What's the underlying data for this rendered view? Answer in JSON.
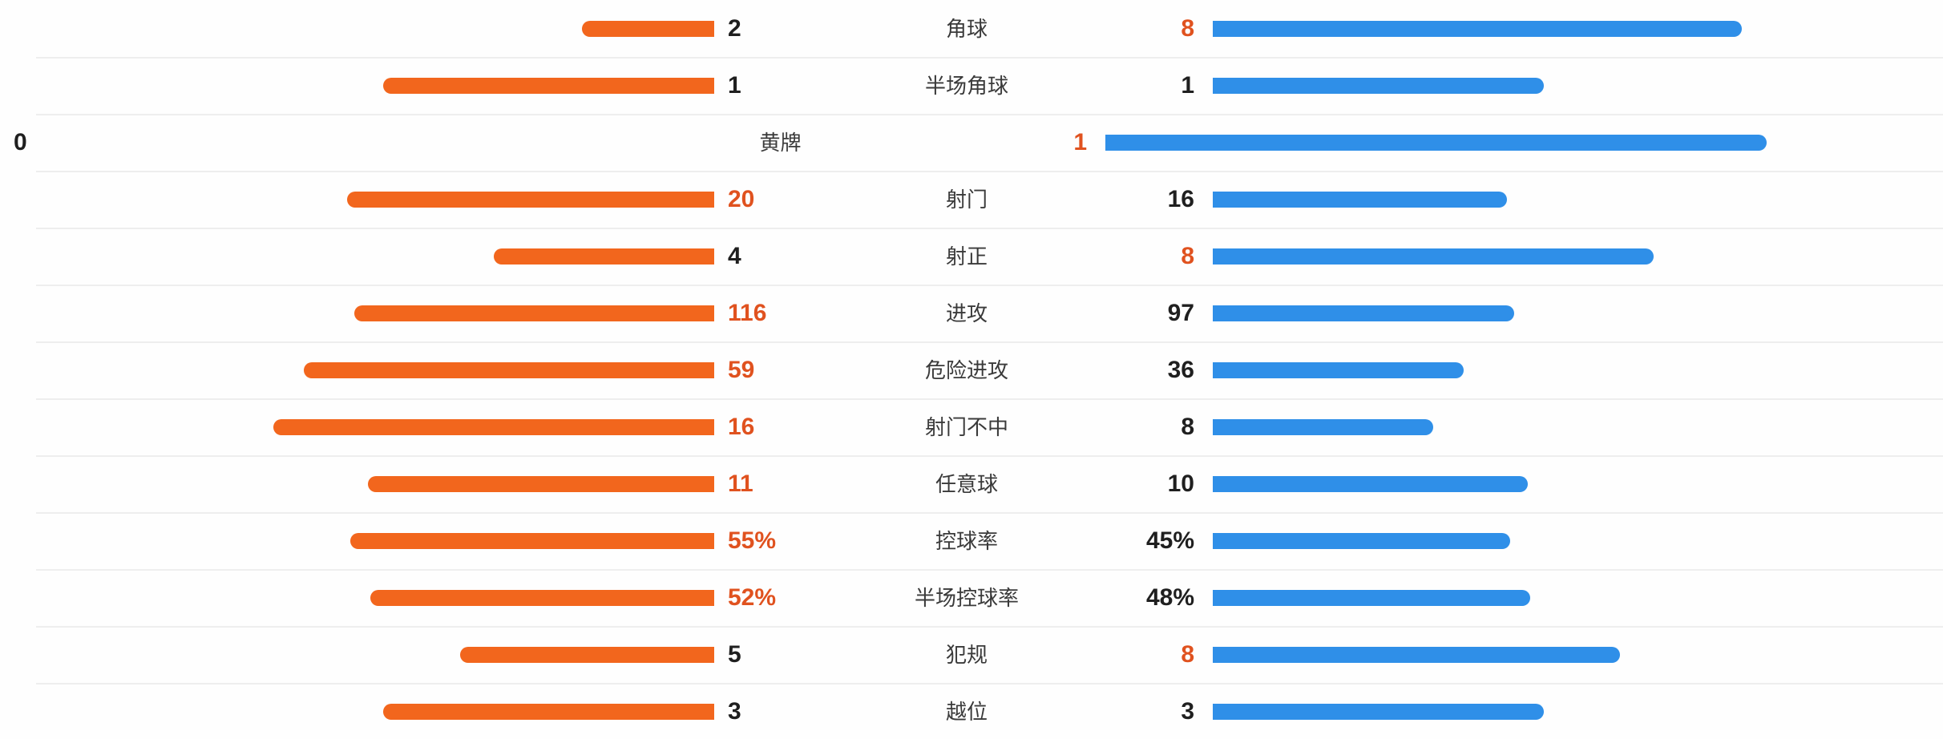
{
  "chart_data": {
    "type": "bar",
    "subtype": "head-to-head-duel-bars",
    "title": "",
    "legend_position": "none",
    "grid": false,
    "layout_hint": "per-row horizontal duel bars; each row's two bar lengths are proportional to value/(home+away); home bars grow leftward from a center-left anchor, away bars grow rightward",
    "categories": [
      "角球",
      "半场角球",
      "黄牌",
      "射门",
      "射正",
      "进攻",
      "危险进攻",
      "射门不中",
      "任意球",
      "控球率",
      "半场控球率",
      "犯规",
      "越位"
    ],
    "series": [
      {
        "name": "home-orange",
        "values": [
          2,
          1,
          0,
          20,
          4,
          116,
          59,
          16,
          11,
          55,
          52,
          5,
          3
        ]
      },
      {
        "name": "away-blue",
        "values": [
          8,
          1,
          1,
          16,
          8,
          97,
          36,
          8,
          10,
          45,
          48,
          8,
          3
        ]
      }
    ],
    "rows": [
      {
        "label": "角球",
        "left": {
          "display": "2",
          "value": 2,
          "highlight": false
        },
        "right": {
          "display": "8",
          "value": 8,
          "highlight": true
        }
      },
      {
        "label": "半场角球",
        "left": {
          "display": "1",
          "value": 1,
          "highlight": false
        },
        "right": {
          "display": "1",
          "value": 1,
          "highlight": false
        }
      },
      {
        "label": "黄牌",
        "left": {
          "display": "0",
          "value": 0,
          "highlight": false
        },
        "right": {
          "display": "1",
          "value": 1,
          "highlight": true
        }
      },
      {
        "label": "射门",
        "left": {
          "display": "20",
          "value": 20,
          "highlight": true
        },
        "right": {
          "display": "16",
          "value": 16,
          "highlight": false
        }
      },
      {
        "label": "射正",
        "left": {
          "display": "4",
          "value": 4,
          "highlight": false
        },
        "right": {
          "display": "8",
          "value": 8,
          "highlight": true
        }
      },
      {
        "label": "进攻",
        "left": {
          "display": "116",
          "value": 116,
          "highlight": true
        },
        "right": {
          "display": "97",
          "value": 97,
          "highlight": false
        }
      },
      {
        "label": "危险进攻",
        "left": {
          "display": "59",
          "value": 59,
          "highlight": true
        },
        "right": {
          "display": "36",
          "value": 36,
          "highlight": false
        }
      },
      {
        "label": "射门不中",
        "left": {
          "display": "16",
          "value": 16,
          "highlight": true
        },
        "right": {
          "display": "8",
          "value": 8,
          "highlight": false
        }
      },
      {
        "label": "任意球",
        "left": {
          "display": "11",
          "value": 11,
          "highlight": true
        },
        "right": {
          "display": "10",
          "value": 10,
          "highlight": false
        }
      },
      {
        "label": "控球率",
        "left": {
          "display": "55%",
          "value": 55,
          "highlight": true
        },
        "right": {
          "display": "45%",
          "value": 45,
          "highlight": false
        }
      },
      {
        "label": "半场控球率",
        "left": {
          "display": "52%",
          "value": 52,
          "highlight": true
        },
        "right": {
          "display": "48%",
          "value": 48,
          "highlight": false
        }
      },
      {
        "label": "犯规",
        "left": {
          "display": "5",
          "value": 5,
          "highlight": false
        },
        "right": {
          "display": "8",
          "value": 8,
          "highlight": true
        }
      },
      {
        "label": "越位",
        "left": {
          "display": "3",
          "value": 3,
          "highlight": false
        },
        "right": {
          "display": "3",
          "value": 3,
          "highlight": false
        }
      }
    ],
    "colors": {
      "home_bar": "#f2661d",
      "away_bar": "#2f8fe8",
      "highlight_value_text": "#e0521f",
      "value_text": "#1f1f1f",
      "label_text": "#3a3a3a",
      "separator": "#eeeeee"
    }
  }
}
